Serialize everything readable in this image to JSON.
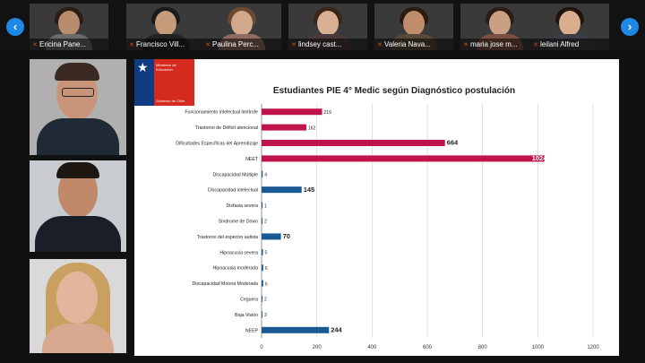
{
  "participants": [
    {
      "name": "Ericina Pane..."
    },
    {
      "name": "Francisco Vill..."
    },
    {
      "name": "Paulina Perc..."
    },
    {
      "name": "lindsey cast..."
    },
    {
      "name": "Valeria Nava..."
    },
    {
      "name": "maria jose m..."
    },
    {
      "name": "leilani Alfred"
    }
  ],
  "nav": {
    "prev": "‹",
    "next": "›"
  },
  "logo": {
    "line1": "Ministerio de",
    "line2": "Educación",
    "line3": "Gobierno de Chile"
  },
  "chart_data": {
    "type": "bar",
    "orientation": "horizontal",
    "title": "Estudiantes PIE 4° Medic según Diagnóstico postulación",
    "categories": [
      "Funcionamiento intelectual limítrofe",
      "Trastorno de Déficit atencional",
      "Dificultades Específicas del Aprendizaje",
      "NEET",
      "Discapacidad Múltiple",
      "Discapacidad intelectual",
      "Disfasia severa",
      "Síndrome de Down",
      "Trastorno del espectro autista",
      "Hipoacusia severa",
      "Hipoacusia moderada",
      "Discapacidad Motora Moderada",
      "Ceguera",
      "Baja Visión",
      "NEEP"
    ],
    "values": [
      219,
      162,
      664,
      1024,
      4,
      145,
      1,
      2,
      70,
      5,
      6,
      6,
      2,
      3,
      244
    ],
    "value_labels": [
      "219",
      "162",
      "664",
      "1024",
      "4",
      "145",
      "1",
      "2",
      "70",
      "5",
      "6",
      "6",
      "2",
      "3",
      "244"
    ],
    "colors": [
      "#c0134a",
      "#c0134a",
      "#c0134a",
      "#c0134a",
      "#1a5a94",
      "#1a5a94",
      "#1a5a94",
      "#1a5a94",
      "#1a5a94",
      "#1a5a94",
      "#1a5a94",
      "#1a5a94",
      "#1a5a94",
      "#1a5a94",
      "#1a5a94"
    ],
    "xlim": [
      0,
      1200
    ],
    "xticks": [
      "0",
      "200",
      "400",
      "600",
      "800",
      "1000",
      "1200"
    ],
    "grid": true
  }
}
